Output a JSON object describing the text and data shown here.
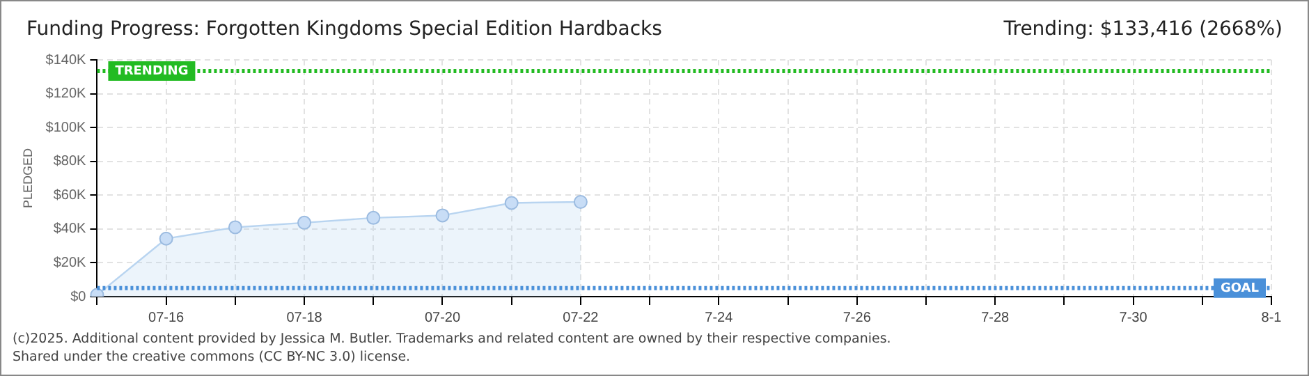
{
  "chart_data": {
    "type": "area",
    "title": "Funding Progress: Forgotten Kingdoms Special Edition Hardbacks",
    "subtitle": "Trending: $133,416 (2668%)",
    "ylabel": "PLEDGED",
    "categories": [
      null,
      "07-16",
      null,
      "07-18",
      null,
      "07-20",
      null,
      "07-22",
      null,
      "7-24",
      null,
      "7-26",
      null,
      "7-28",
      null,
      "7-30",
      null,
      "8-1"
    ],
    "series": [
      {
        "color": "#b8d4f0",
        "values": [
          1000,
          34300,
          41000,
          43700,
          46600,
          48000,
          55400,
          56000,
          null,
          null,
          null,
          null,
          null,
          null,
          null,
          null,
          null,
          null
        ]
      }
    ],
    "ylim": [
      0,
      140000
    ],
    "yticks": [
      {
        "value": 0,
        "label": "$0"
      },
      {
        "value": 20000,
        "label": "$20K"
      },
      {
        "value": 40000,
        "label": "$40K"
      },
      {
        "value": 60000,
        "label": "$60K"
      },
      {
        "value": 80000,
        "label": "$80K"
      },
      {
        "value": 100000,
        "label": "$100K"
      },
      {
        "value": 120000,
        "label": "$120K"
      },
      {
        "value": 140000,
        "label": "$140K"
      }
    ],
    "ref_lines": [
      {
        "axis": "y",
        "value": 133416,
        "label": "TRENDING",
        "color": "#22bb22",
        "line_style": "dotted"
      },
      {
        "axis": "y",
        "value": 5000,
        "label": "GOAL",
        "color": "#4a90d9",
        "line_style": "dotted"
      }
    ],
    "annotations": [
      "(c)2025. Additional content provided by Jessica M. Butler. Trademarks and related content are owned by their respective companies.",
      "Shared under the creative commons (CC BY-NC 3.0) license."
    ],
    "grid": true,
    "legend": false,
    "marker": "circle",
    "line_style": "solid"
  }
}
